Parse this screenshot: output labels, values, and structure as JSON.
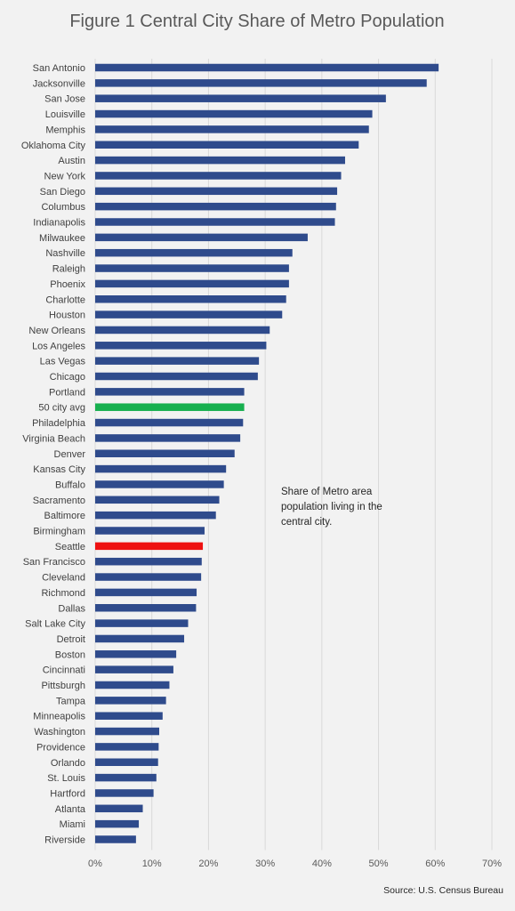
{
  "colors": {
    "background": "#f2f2f2",
    "bar_default": "#2f4b8c",
    "bar_average": "#17b04f",
    "bar_seattle": "#ee1111",
    "gridline": "#d9d9d9"
  },
  "chart_data": {
    "type": "bar",
    "orientation": "horizontal",
    "title": "Figure 1 Central City Share of Metro Population",
    "xlabel": "",
    "ylabel": "",
    "xlim": [
      0,
      70
    ],
    "x_ticks": [
      "0%",
      "10%",
      "20%",
      "30%",
      "40%",
      "50%",
      "60%",
      "70%"
    ],
    "grid": true,
    "annotation": [
      "Share of Metro area",
      "population living in the",
      "central city."
    ],
    "source": "Source: U.S. Census Bureau",
    "highlights": {
      "50 city avg": "bar_average",
      "Seattle": "bar_seattle"
    },
    "categories": [
      "San Antonio",
      "Jacksonville",
      "San Jose",
      "Louisville",
      "Memphis",
      "Oklahoma City",
      "Austin",
      "New York",
      "San Diego",
      "Columbus",
      "Indianapolis",
      "Milwaukee",
      "Nashville",
      "Raleigh",
      "Phoenix",
      "Charlotte",
      "Houston",
      "New Orleans",
      "Los Angeles",
      "Las Vegas",
      "Chicago",
      "Portland",
      "50 city avg",
      "Philadelphia",
      "Virginia Beach",
      "Denver",
      "Kansas City",
      "Buffalo",
      "Sacramento",
      "Baltimore",
      "Birmingham",
      "Seattle",
      "San Francisco",
      "Cleveland",
      "Richmond",
      "Dallas",
      "Salt Lake City",
      "Detroit",
      "Boston",
      "Cincinnati",
      "Pittsburgh",
      "Tampa",
      "Minneapolis",
      "Washington",
      "Providence",
      "Orlando",
      "St. Louis",
      "Hartford",
      "Atlanta",
      "Miami",
      "Riverside"
    ],
    "values": [
      60.6,
      58.5,
      51.3,
      48.9,
      48.3,
      46.5,
      44.1,
      43.4,
      42.7,
      42.5,
      42.3,
      37.5,
      34.8,
      34.2,
      34.2,
      33.7,
      33.0,
      30.8,
      30.2,
      28.9,
      28.7,
      26.3,
      26.3,
      26.1,
      25.6,
      24.6,
      23.1,
      22.7,
      21.9,
      21.3,
      19.3,
      19.0,
      18.8,
      18.7,
      17.9,
      17.8,
      16.4,
      15.7,
      14.3,
      13.8,
      13.1,
      12.5,
      11.9,
      11.3,
      11.2,
      11.1,
      10.8,
      10.3,
      8.4,
      7.7,
      7.2
    ]
  }
}
